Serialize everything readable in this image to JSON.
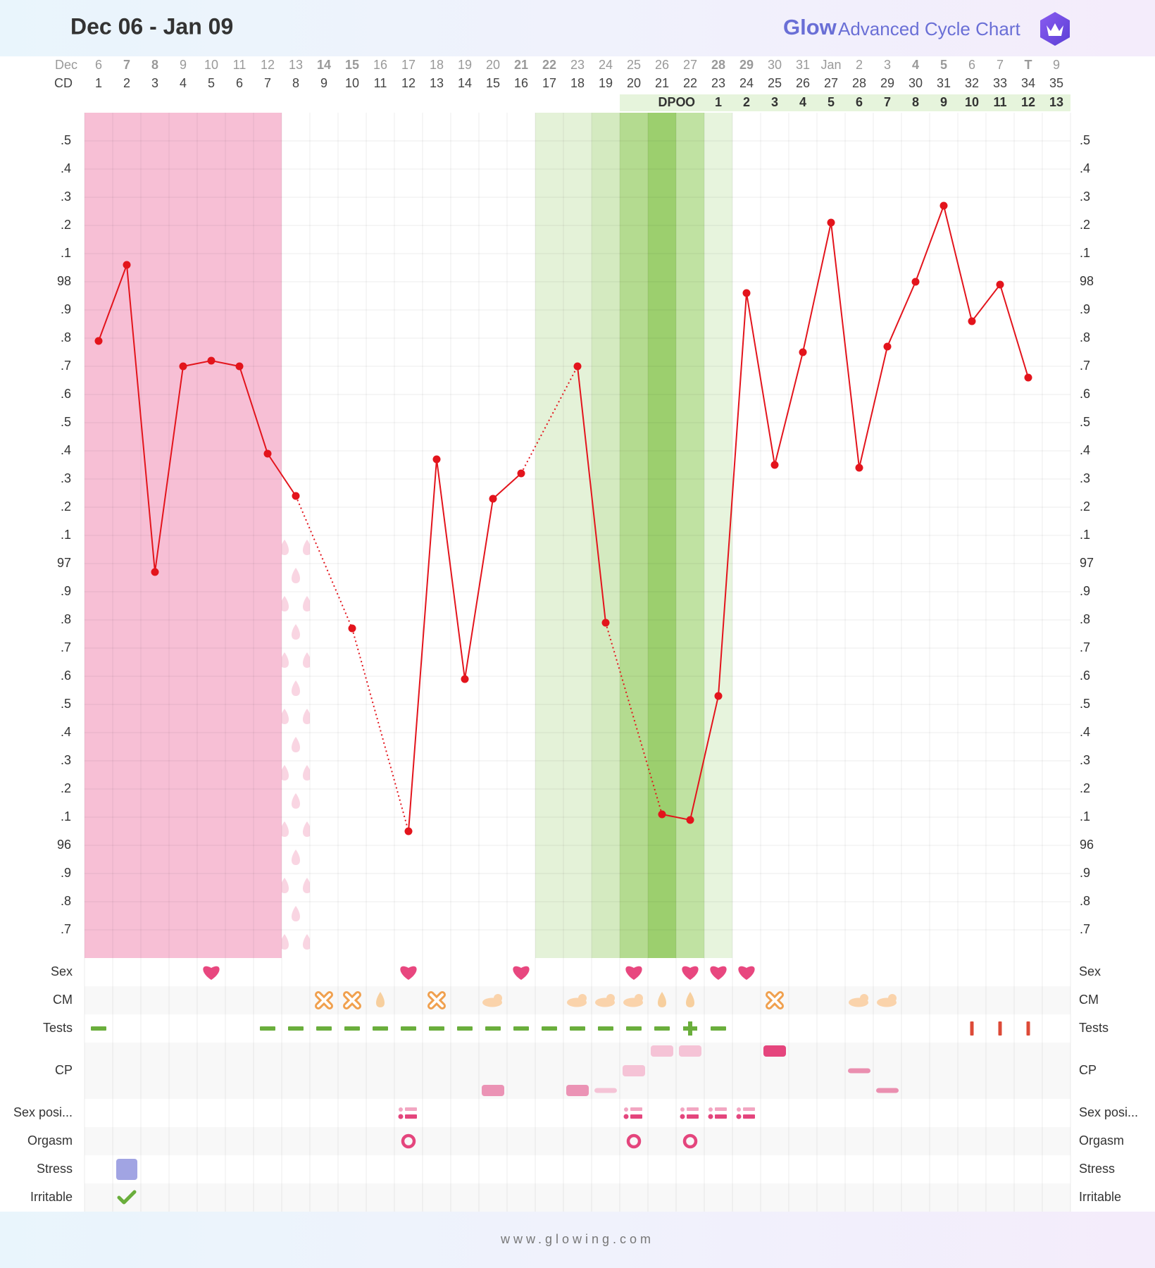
{
  "chart_data": {
    "type": "line",
    "title": "Dec 06 - Jan 09",
    "brand": "Glow",
    "subtitle": "Advanced Cycle Chart",
    "footer": "www.glowing.com",
    "date_label": "Dec",
    "cd_label": "CD",
    "dates": [
      "6",
      "7",
      "8",
      "9",
      "10",
      "11",
      "12",
      "13",
      "14",
      "15",
      "16",
      "17",
      "18",
      "19",
      "20",
      "21",
      "22",
      "23",
      "24",
      "25",
      "26",
      "27",
      "28",
      "29",
      "30",
      "31",
      "Jan",
      "2",
      "3",
      "4",
      "5",
      "6",
      "7",
      "T",
      "9"
    ],
    "red_date_cds": [
      2,
      3,
      9,
      10,
      16,
      17,
      23,
      24,
      30,
      31
    ],
    "red_color": "#e5534b",
    "today_cd": 34,
    "today_color": "#5b5fc7",
    "categories": [
      1,
      2,
      3,
      4,
      5,
      6,
      7,
      8,
      9,
      10,
      11,
      12,
      13,
      14,
      15,
      16,
      17,
      18,
      19,
      20,
      21,
      22,
      23,
      24,
      25,
      26,
      27,
      28,
      29,
      30,
      31,
      32,
      33,
      34,
      35
    ],
    "dpo": {
      "label": "DPO",
      "start_cd": 22,
      "values": [
        "O",
        1,
        2,
        3,
        4,
        5,
        6,
        7,
        8,
        9,
        10,
        11,
        12,
        13
      ],
      "color": "#e6f4dc"
    },
    "series": [
      {
        "name": "BBT",
        "color": "#e3141c",
        "values": [
          97.79,
          98.06,
          96.97,
          97.7,
          97.72,
          97.7,
          97.39,
          97.24,
          null,
          96.77,
          null,
          96.05,
          97.37,
          96.59,
          97.23,
          97.32,
          null,
          97.7,
          96.79,
          null,
          96.11,
          96.09,
          96.53,
          97.96,
          97.35,
          97.75,
          98.21,
          97.34,
          97.77,
          98.0,
          98.27,
          97.86,
          97.99,
          97.66,
          null
        ]
      }
    ],
    "ylim": [
      95.6,
      98.6
    ],
    "yticks": [
      {
        "value": 98.5,
        "label": ".5"
      },
      {
        "value": 98.4,
        "label": ".4"
      },
      {
        "value": 98.3,
        "label": ".3"
      },
      {
        "value": 98.2,
        "label": ".2"
      },
      {
        "value": 98.1,
        "label": ".1"
      },
      98,
      {
        "value": 97.9,
        "label": ".9"
      },
      {
        "value": 97.8,
        "label": ".8"
      },
      {
        "value": 97.7,
        "label": ".7"
      },
      {
        "value": 97.6,
        "label": ".6"
      },
      {
        "value": 97.5,
        "label": ".5"
      },
      {
        "value": 97.4,
        "label": ".4"
      },
      {
        "value": 97.3,
        "label": ".3"
      },
      {
        "value": 97.2,
        "label": ".2"
      },
      {
        "value": 97.1,
        "label": ".1"
      },
      97,
      {
        "value": 96.9,
        "label": ".9"
      },
      {
        "value": 96.8,
        "label": ".8"
      },
      {
        "value": 96.7,
        "label": ".7"
      },
      {
        "value": 96.6,
        "label": ".6"
      },
      {
        "value": 96.5,
        "label": ".5"
      },
      {
        "value": 96.4,
        "label": ".4"
      },
      {
        "value": 96.3,
        "label": ".3"
      },
      {
        "value": 96.2,
        "label": ".2"
      },
      {
        "value": 96.1,
        "label": ".1"
      },
      96,
      {
        "value": 95.9,
        "label": ".9"
      },
      {
        "value": 95.8,
        "label": ".8"
      },
      {
        "value": 95.7,
        "label": ".7"
      }
    ],
    "grid": true,
    "period": {
      "start_cd": 1,
      "end_cd": 7,
      "color": "#f7bfd5"
    },
    "spotting_cds": [
      8
    ],
    "fertile_window": [
      {
        "cd": 17,
        "color": "#e4f2d8"
      },
      {
        "cd": 18,
        "color": "#e4f2d8"
      },
      {
        "cd": 19,
        "color": "#d4eac0"
      },
      {
        "cd": 20,
        "color": "#b4db90"
      },
      {
        "cd": 21,
        "color": "#9ccf6e"
      },
      {
        "cd": 22,
        "color": "#c0e2a2"
      },
      {
        "cd": 23,
        "color": "#e7f4dd"
      }
    ],
    "rows": [
      {
        "label": "Sex",
        "items": [
          {
            "cd": 5,
            "icon": "heart"
          },
          {
            "cd": 12,
            "icon": "heart"
          },
          {
            "cd": 16,
            "icon": "heart"
          },
          {
            "cd": 20,
            "icon": "heart"
          },
          {
            "cd": 22,
            "icon": "heart"
          },
          {
            "cd": 23,
            "icon": "heart"
          },
          {
            "cd": 24,
            "icon": "heart"
          }
        ]
      },
      {
        "label": "CM",
        "items": [
          {
            "cd": 9,
            "icon": "cross"
          },
          {
            "cd": 10,
            "icon": "cross"
          },
          {
            "cd": 11,
            "icon": "drop"
          },
          {
            "cd": 13,
            "icon": "cross"
          },
          {
            "cd": 15,
            "icon": "creamy"
          },
          {
            "cd": 18,
            "icon": "creamy"
          },
          {
            "cd": 19,
            "icon": "creamy"
          },
          {
            "cd": 20,
            "icon": "creamy"
          },
          {
            "cd": 21,
            "icon": "drop"
          },
          {
            "cd": 22,
            "icon": "drop"
          },
          {
            "cd": 25,
            "icon": "cross"
          },
          {
            "cd": 28,
            "icon": "creamy"
          },
          {
            "cd": 29,
            "icon": "creamy"
          }
        ]
      },
      {
        "label": "Tests",
        "items": [
          {
            "cd": 1,
            "icon": "dash"
          },
          {
            "cd": 7,
            "icon": "dash"
          },
          {
            "cd": 8,
            "icon": "dash"
          },
          {
            "cd": 9,
            "icon": "dash"
          },
          {
            "cd": 10,
            "icon": "dash"
          },
          {
            "cd": 11,
            "icon": "dash"
          },
          {
            "cd": 12,
            "icon": "dash"
          },
          {
            "cd": 13,
            "icon": "dash"
          },
          {
            "cd": 14,
            "icon": "dash"
          },
          {
            "cd": 15,
            "icon": "dash"
          },
          {
            "cd": 16,
            "icon": "dash"
          },
          {
            "cd": 17,
            "icon": "dash"
          },
          {
            "cd": 18,
            "icon": "dash"
          },
          {
            "cd": 19,
            "icon": "dash"
          },
          {
            "cd": 20,
            "icon": "dash"
          },
          {
            "cd": 21,
            "icon": "dash"
          },
          {
            "cd": 22,
            "icon": "plus"
          },
          {
            "cd": 23,
            "icon": "dash"
          },
          {
            "cd": 32,
            "icon": "redbar"
          },
          {
            "cd": 33,
            "icon": "redbar"
          },
          {
            "cd": 34,
            "icon": "redbar"
          }
        ]
      },
      {
        "label": "CP",
        "items": [
          {
            "cd": 21,
            "icon": "cp-light",
            "level": 0
          },
          {
            "cd": 22,
            "icon": "cp-light",
            "level": 0
          },
          {
            "cd": 25,
            "icon": "cp-dark",
            "level": 0
          },
          {
            "cd": 20,
            "icon": "cp-light",
            "level": 1
          },
          {
            "cd": 28,
            "icon": "cp-thin",
            "level": 1
          },
          {
            "cd": 15,
            "icon": "cp-mid",
            "level": 2
          },
          {
            "cd": 18,
            "icon": "cp-mid",
            "level": 2
          },
          {
            "cd": 19,
            "icon": "cp-faint",
            "level": 2
          },
          {
            "cd": 29,
            "icon": "cp-thin",
            "level": 2
          }
        ]
      },
      {
        "label": "Sex posi...",
        "items": [
          {
            "cd": 12,
            "icon": "sexpos"
          },
          {
            "cd": 20,
            "icon": "sexpos"
          },
          {
            "cd": 22,
            "icon": "sexpos"
          },
          {
            "cd": 23,
            "icon": "sexpos"
          },
          {
            "cd": 24,
            "icon": "sexpos"
          }
        ]
      },
      {
        "label": "Orgasm",
        "items": [
          {
            "cd": 12,
            "icon": "ring"
          },
          {
            "cd": 20,
            "icon": "ring"
          },
          {
            "cd": 22,
            "icon": "ring"
          }
        ]
      },
      {
        "label": "Stress",
        "items": [
          {
            "cd": 2,
            "icon": "square"
          }
        ]
      },
      {
        "label": "Irritable",
        "items": [
          {
            "cd": 2,
            "icon": "check"
          }
        ]
      }
    ]
  }
}
